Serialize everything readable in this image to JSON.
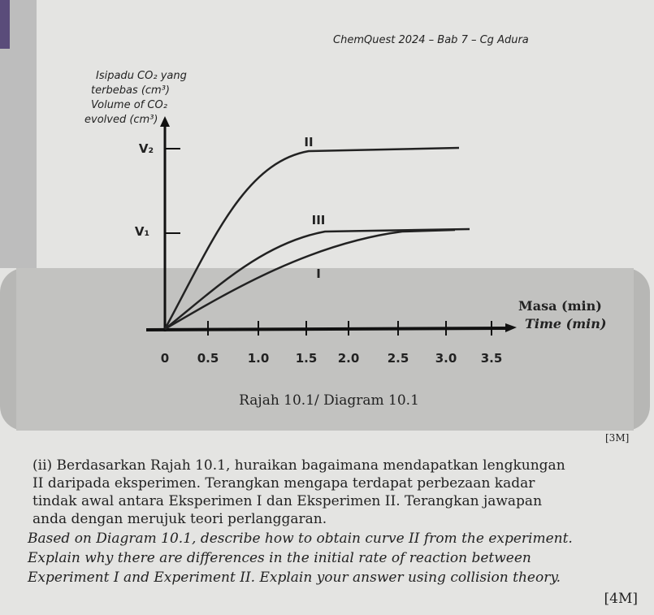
{
  "header": "ChemQuest 2024 – Bab 7 – Cg Adura",
  "chart": {
    "y_label": [
      "Isipadu CO₂ yang",
      "terbebas (cm³)",
      "Volume of CO₂",
      "evolved (cm³)"
    ],
    "y_ticks": [
      "V₂",
      "V₁"
    ],
    "curve_labels": [
      "II",
      "III",
      "I"
    ],
    "x_label": [
      "Masa (min)",
      "Time (min)"
    ],
    "x_ticks": [
      "0",
      "0.5",
      "1.0",
      "1.5",
      "2.0",
      "2.5",
      "3.0",
      "3.5"
    ],
    "caption": "Rajah 10.1/ Diagram 10.1"
  },
  "prev_marks": "[3M]",
  "question": {
    "malay": [
      "(ii) Berdasarkan Rajah 10.1, huraikan bagaimana mendapatkan lengkungan",
      "II daripada eksperimen. Terangkan mengapa terdapat perbezaan kadar",
      "tindak awal antara Eksperimen I dan Eksperimen II. Terangkan jawapan",
      "anda dengan merujuk teori perlanggaran."
    ],
    "english": [
      "Based on Diagram 10.1, describe how to obtain curve II from the experiment.",
      "Explain why there are differences in the initial rate of reaction between",
      "Experiment I and Experiment II. Explain your answer using collision theory."
    ],
    "marks": "[4M]"
  }
}
